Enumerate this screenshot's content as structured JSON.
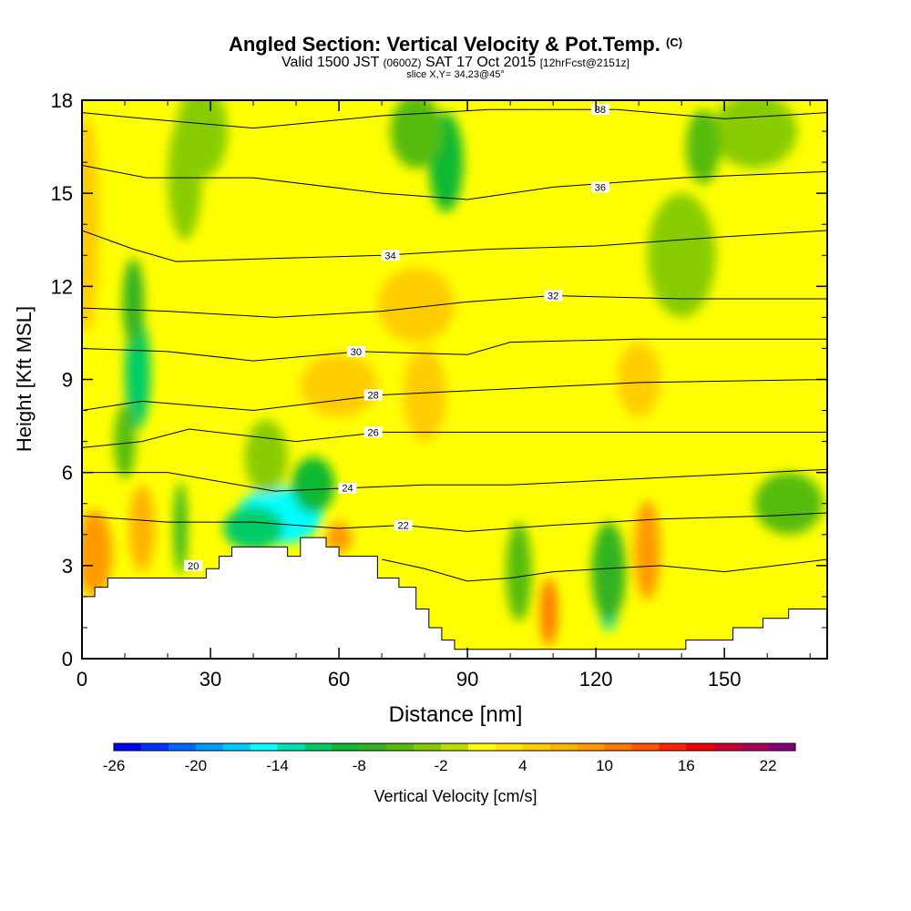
{
  "header": {
    "title": "Angled Section: Vertical Velocity & Pot.Temp.",
    "title_mark": "(C)",
    "valid_prefix": "Valid 1500 JST",
    "valid_zulu": "(0600Z)",
    "valid_date": "SAT 17 Oct 2015",
    "forecast_note": "[12hrFcst@2151z]",
    "slice_info": "slice X,Y= 34,23@45°"
  },
  "chart_data": {
    "type": "heatmap",
    "xlabel": "Distance [nm]",
    "ylabel": "Height [Kft MSL]",
    "xlim": [
      0,
      174
    ],
    "ylim": [
      0,
      18
    ],
    "x_ticks": [
      0,
      30,
      60,
      90,
      120,
      150
    ],
    "y_ticks": [
      0,
      3,
      6,
      9,
      12,
      15,
      18
    ],
    "x_tick_labels": [
      "0",
      "30",
      "60",
      "90",
      "120",
      "150"
    ],
    "y_tick_labels": [
      "0",
      "3",
      "6",
      "9",
      "12",
      "15",
      "18"
    ],
    "terrain_profile": [
      [
        0,
        2.0
      ],
      [
        3,
        2.0
      ],
      [
        3,
        2.3
      ],
      [
        6,
        2.3
      ],
      [
        6,
        2.6
      ],
      [
        29,
        2.6
      ],
      [
        29,
        2.9
      ],
      [
        32,
        2.9
      ],
      [
        32,
        3.3
      ],
      [
        35,
        3.3
      ],
      [
        35,
        3.6
      ],
      [
        48,
        3.6
      ],
      [
        48,
        3.3
      ],
      [
        51,
        3.3
      ],
      [
        51,
        3.9
      ],
      [
        57,
        3.9
      ],
      [
        57,
        3.6
      ],
      [
        60,
        3.6
      ],
      [
        60,
        3.3
      ],
      [
        69,
        3.3
      ],
      [
        69,
        2.6
      ],
      [
        74,
        2.6
      ],
      [
        74,
        2.3
      ],
      [
        78,
        2.3
      ],
      [
        78,
        1.6
      ],
      [
        81,
        1.6
      ],
      [
        81,
        1.0
      ],
      [
        84,
        1.0
      ],
      [
        84,
        0.6
      ],
      [
        87,
        0.6
      ],
      [
        87,
        0.3
      ],
      [
        91,
        0.3
      ],
      [
        91,
        0.3
      ],
      [
        141,
        0.3
      ],
      [
        141,
        0.6
      ],
      [
        152,
        0.6
      ],
      [
        152,
        1.0
      ],
      [
        159,
        1.0
      ],
      [
        159,
        1.3
      ],
      [
        165,
        1.3
      ],
      [
        165,
        1.6
      ],
      [
        174,
        1.6
      ]
    ],
    "colorbar": {
      "label": "Vertical Velocity [cm/s]",
      "min": -26,
      "max": 24,
      "step": 2,
      "tick_values": [
        -26,
        -20,
        -14,
        -8,
        -2,
        4,
        10,
        16,
        22
      ],
      "tick_labels": [
        "-26",
        "-20",
        "-14",
        "-8",
        "-2",
        "4",
        "10",
        "16",
        "22"
      ],
      "colors": [
        "#0000ff",
        "#0033ff",
        "#0066ff",
        "#0099ff",
        "#00ccff",
        "#00ffff",
        "#00e0b0",
        "#00cc66",
        "#11b833",
        "#33b222",
        "#55bb11",
        "#88cc00",
        "#bbdd00",
        "#ffff00",
        "#ffe500",
        "#ffcc00",
        "#ffb300",
        "#ff9900",
        "#ff7700",
        "#ff5500",
        "#ff2200",
        "#ee0000",
        "#cc0033",
        "#aa0055",
        "#880077"
      ]
    },
    "velocity_field": {
      "background": 0,
      "features": [
        {
          "x": 46,
          "y": 4.6,
          "rx": 10,
          "ry": 0.9,
          "value": -15
        },
        {
          "x": 40,
          "y": 4.2,
          "rx": 7,
          "ry": 0.7,
          "value": -12
        },
        {
          "x": 54,
          "y": 5.6,
          "rx": 5,
          "ry": 0.9,
          "value": -9
        },
        {
          "x": 13,
          "y": 9.2,
          "rx": 3,
          "ry": 1.8,
          "value": -11
        },
        {
          "x": 12,
          "y": 11.5,
          "rx": 2.5,
          "ry": 1.4,
          "value": -8
        },
        {
          "x": 10,
          "y": 7.0,
          "rx": 2.5,
          "ry": 1.2,
          "value": -6
        },
        {
          "x": 85,
          "y": 16.0,
          "rx": 4,
          "ry": 1.6,
          "value": -10
        },
        {
          "x": 78,
          "y": 17.0,
          "rx": 6,
          "ry": 1.2,
          "value": -6
        },
        {
          "x": 123,
          "y": 2.1,
          "rx": 2.5,
          "ry": 1.2,
          "value": -14
        },
        {
          "x": 123,
          "y": 2.8,
          "rx": 4,
          "ry": 1.6,
          "value": -7
        },
        {
          "x": 102,
          "y": 2.8,
          "rx": 3,
          "ry": 1.6,
          "value": -5
        },
        {
          "x": 132,
          "y": 3.5,
          "rx": 2,
          "ry": 1.0,
          "value": 14
        },
        {
          "x": 132,
          "y": 3.5,
          "rx": 3,
          "ry": 1.6,
          "value": 8
        },
        {
          "x": 109,
          "y": 1.5,
          "rx": 2,
          "ry": 1.1,
          "value": 11
        },
        {
          "x": 3,
          "y": 3.4,
          "rx": 4,
          "ry": 1.4,
          "value": 9
        },
        {
          "x": 14,
          "y": 4.2,
          "rx": 3,
          "ry": 1.4,
          "value": 6
        },
        {
          "x": 60,
          "y": 3.9,
          "rx": 3,
          "ry": 0.5,
          "value": 9
        },
        {
          "x": 78,
          "y": 11.4,
          "rx": 9,
          "ry": 1.2,
          "value": 5
        },
        {
          "x": 60,
          "y": 8.8,
          "rx": 9,
          "ry": 1.0,
          "value": 4
        },
        {
          "x": 1,
          "y": 14.0,
          "rx": 3,
          "ry": 3.5,
          "value": 5
        },
        {
          "x": 130,
          "y": 9.0,
          "rx": 5,
          "ry": 1.2,
          "value": 4
        },
        {
          "x": 80,
          "y": 8.5,
          "rx": 5,
          "ry": 1.5,
          "value": 4
        },
        {
          "x": 165,
          "y": 5.0,
          "rx": 8,
          "ry": 1.0,
          "value": -5
        },
        {
          "x": 140,
          "y": 13.0,
          "rx": 8,
          "ry": 2.0,
          "value": -3
        },
        {
          "x": 28,
          "y": 17.0,
          "rx": 6,
          "ry": 1.5,
          "value": -3
        },
        {
          "x": 24,
          "y": 15.5,
          "rx": 4,
          "ry": 2.0,
          "value": -3
        },
        {
          "x": 157,
          "y": 17.0,
          "rx": 10,
          "ry": 1.2,
          "value": -3
        },
        {
          "x": 43,
          "y": 6.5,
          "rx": 5,
          "ry": 1.2,
          "value": -3
        },
        {
          "x": 23,
          "y": 4.2,
          "rx": 1.5,
          "ry": 1.5,
          "value": -7
        },
        {
          "x": 145,
          "y": 16.5,
          "rx": 4,
          "ry": 1.2,
          "value": -5
        }
      ]
    },
    "theta_contours": [
      {
        "value": 20,
        "label": "20",
        "points": [
          [
            70,
            3.2
          ],
          [
            80,
            2.9
          ],
          [
            90,
            2.5
          ],
          [
            100,
            2.6
          ],
          [
            110,
            2.8
          ],
          [
            122,
            2.9
          ],
          [
            135,
            3.0
          ],
          [
            150,
            2.8
          ],
          [
            174,
            3.2
          ]
        ],
        "label_at": [
          26,
          3.0
        ]
      },
      {
        "value": 22,
        "label": "22",
        "points": [
          [
            0,
            4.6
          ],
          [
            20,
            4.4
          ],
          [
            40,
            4.4
          ],
          [
            60,
            4.2
          ],
          [
            75,
            4.3
          ],
          [
            90,
            4.1
          ],
          [
            110,
            4.3
          ],
          [
            135,
            4.5
          ],
          [
            160,
            4.6
          ],
          [
            174,
            4.7
          ]
        ],
        "label_at": [
          75,
          4.3
        ]
      },
      {
        "value": 24,
        "label": "24",
        "points": [
          [
            0,
            6.0
          ],
          [
            20,
            6.0
          ],
          [
            45,
            5.4
          ],
          [
            62,
            5.5
          ],
          [
            80,
            5.6
          ],
          [
            100,
            5.6
          ],
          [
            130,
            5.8
          ],
          [
            174,
            6.1
          ]
        ],
        "label_at": [
          62,
          5.5
        ]
      },
      {
        "value": 26,
        "label": "26",
        "points": [
          [
            0,
            6.8
          ],
          [
            14,
            7.0
          ],
          [
            25,
            7.4
          ],
          [
            50,
            7.0
          ],
          [
            70,
            7.3
          ],
          [
            100,
            7.3
          ],
          [
            130,
            7.3
          ],
          [
            174,
            7.3
          ]
        ],
        "label_at": [
          68,
          7.3
        ]
      },
      {
        "value": 28,
        "label": "28",
        "points": [
          [
            0,
            8.0
          ],
          [
            14,
            8.3
          ],
          [
            40,
            8.0
          ],
          [
            70,
            8.5
          ],
          [
            100,
            8.7
          ],
          [
            130,
            8.9
          ],
          [
            174,
            9.0
          ]
        ],
        "label_at": [
          68,
          8.5
        ]
      },
      {
        "value": 30,
        "label": "30",
        "points": [
          [
            0,
            10.0
          ],
          [
            20,
            9.9
          ],
          [
            40,
            9.6
          ],
          [
            65,
            9.9
          ],
          [
            90,
            9.8
          ],
          [
            100,
            10.2
          ],
          [
            130,
            10.3
          ],
          [
            174,
            10.3
          ]
        ],
        "label_at": [
          64,
          9.9
        ]
      },
      {
        "value": 32,
        "label": "32",
        "points": [
          [
            0,
            11.3
          ],
          [
            20,
            11.2
          ],
          [
            45,
            11.0
          ],
          [
            70,
            11.2
          ],
          [
            90,
            11.5
          ],
          [
            110,
            11.7
          ],
          [
            140,
            11.6
          ],
          [
            174,
            11.6
          ]
        ],
        "label_at": [
          110,
          11.7
        ]
      },
      {
        "value": 34,
        "label": "34",
        "points": [
          [
            0,
            13.8
          ],
          [
            12,
            13.2
          ],
          [
            22,
            12.8
          ],
          [
            45,
            12.9
          ],
          [
            70,
            13.0
          ],
          [
            95,
            13.2
          ],
          [
            120,
            13.3
          ],
          [
            150,
            13.6
          ],
          [
            174,
            13.8
          ]
        ],
        "label_at": [
          72,
          13.0
        ]
      },
      {
        "value": 36,
        "label": "36",
        "points": [
          [
            0,
            15.9
          ],
          [
            15,
            15.5
          ],
          [
            40,
            15.5
          ],
          [
            70,
            15.0
          ],
          [
            90,
            14.8
          ],
          [
            110,
            15.2
          ],
          [
            140,
            15.5
          ],
          [
            174,
            15.7
          ]
        ],
        "label_at": [
          121,
          15.2
        ]
      },
      {
        "value": 38,
        "label": "38",
        "points": [
          [
            0,
            17.6
          ],
          [
            15,
            17.4
          ],
          [
            40,
            17.1
          ],
          [
            70,
            17.5
          ],
          [
            95,
            17.7
          ],
          [
            125,
            17.7
          ],
          [
            150,
            17.4
          ],
          [
            174,
            17.6
          ]
        ],
        "label_at": [
          121,
          17.7
        ]
      }
    ]
  }
}
